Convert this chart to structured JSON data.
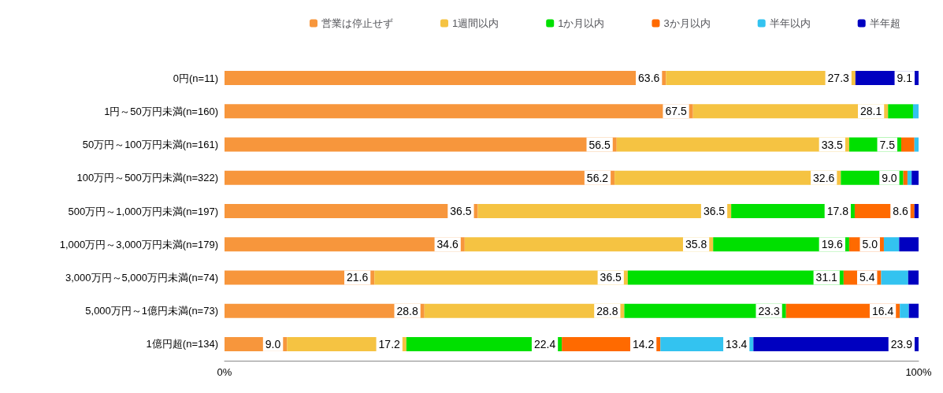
{
  "chart_data": {
    "type": "bar",
    "orientation": "horizontal",
    "stacked": true,
    "legend": "top",
    "grid": false,
    "categories": [
      "0円(n=11)",
      "1円～50万円未満(n=160)",
      "50万円～100万円未満(n=161)",
      "100万円～500万円未満(n=322)",
      "500万円～1,000万円未満(n=197)",
      "1,000万円～3,000万円未満(n=179)",
      "3,000万円～5,000万円未満(n=74)",
      "5,000万円～1億円未満(n=73)",
      "1億円超(n=134)"
    ],
    "xlim": [
      0,
      100
    ],
    "xticks": [
      {
        "value": 0,
        "label": "0%"
      },
      {
        "value": 100,
        "label": "100%"
      }
    ],
    "series": [
      {
        "name": "営業は停止せず",
        "color": "#f7963c",
        "values": [
          63.6,
          67.5,
          56.5,
          56.2,
          36.5,
          34.6,
          21.6,
          28.8,
          9.0
        ],
        "value_labels": [
          "63.6",
          "67.5",
          "56.5",
          "56.2",
          "36.5",
          "34.6",
          "21.6",
          "28.8",
          "9.0"
        ]
      },
      {
        "name": "1週間以内",
        "color": "#f5c342",
        "values": [
          27.3,
          28.1,
          33.5,
          32.6,
          36.5,
          35.8,
          36.5,
          28.8,
          17.2
        ],
        "value_labels": [
          "27.3",
          "28.1",
          "33.5",
          "32.6",
          "36.5",
          "35.8",
          "36.5",
          "28.8",
          "17.2"
        ]
      },
      {
        "name": "1か月以内",
        "color": "#00e000",
        "values": [
          0,
          3.6,
          7.5,
          9.0,
          17.8,
          19.6,
          31.1,
          23.3,
          22.4
        ],
        "value_labels": [
          null,
          null,
          "7.5",
          "9.0",
          "17.8",
          "19.6",
          "31.1",
          "23.3",
          "22.4"
        ]
      },
      {
        "name": "3か月以内",
        "color": "#ff6a00",
        "values": [
          0,
          0,
          1.9,
          0.6,
          8.6,
          5.0,
          5.4,
          16.4,
          14.2
        ],
        "value_labels": [
          null,
          null,
          null,
          null,
          "8.6",
          "5.0",
          "5.4",
          "16.4",
          "14.2"
        ]
      },
      {
        "name": "半年以内",
        "color": "#33c3f0",
        "values": [
          0,
          0.8,
          0.6,
          0.6,
          0,
          2.2,
          3.9,
          1.3,
          13.4
        ],
        "value_labels": [
          null,
          null,
          null,
          null,
          null,
          null,
          null,
          null,
          "13.4"
        ]
      },
      {
        "name": "半年超",
        "color": "#0000c0",
        "values": [
          9.1,
          0,
          0,
          1.0,
          0.6,
          2.8,
          1.5,
          1.4,
          23.9
        ],
        "value_labels": [
          "9.1",
          null,
          null,
          null,
          null,
          null,
          null,
          null,
          "23.9"
        ]
      }
    ]
  }
}
